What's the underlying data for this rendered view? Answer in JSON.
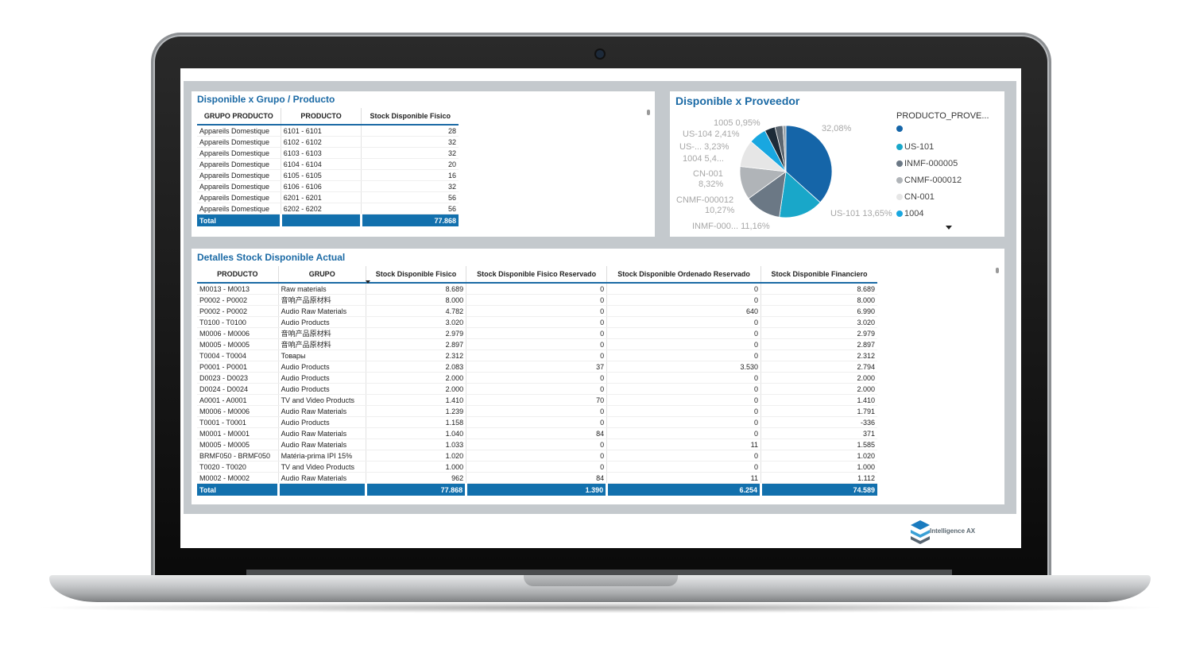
{
  "table1": {
    "title": "Disponible x Grupo / Producto",
    "headers": [
      "GRUPO PRODUCTO",
      "PRODUCTO",
      "Stock Disponible Fisico"
    ],
    "rows": [
      [
        "Appareils Domestique",
        "6101 - 6101",
        "28"
      ],
      [
        "Appareils Domestique",
        "6102 - 6102",
        "32"
      ],
      [
        "Appareils Domestique",
        "6103 - 6103",
        "32"
      ],
      [
        "Appareils Domestique",
        "6104 - 6104",
        "20"
      ],
      [
        "Appareils Domestique",
        "6105 - 6105",
        "16"
      ],
      [
        "Appareils Domestique",
        "6106 - 6106",
        "32"
      ],
      [
        "Appareils Domestique",
        "6201 - 6201",
        "56"
      ],
      [
        "Appareils Domestique",
        "6202 - 6202",
        "56"
      ]
    ],
    "total": [
      "Total",
      "",
      "77.868"
    ]
  },
  "pie": {
    "title": "Disponible x Proveedor",
    "legend_title": "PRODUCTO_PROVE...",
    "legend": [
      {
        "label": "",
        "color": "#1565a8"
      },
      {
        "label": "US-101",
        "color": "#19a7c9"
      },
      {
        "label": "INMF-000005",
        "color": "#6b7885"
      },
      {
        "label": "CNMF-000012",
        "color": "#b0b4b8"
      },
      {
        "label": "CN-001",
        "color": "#e6e6e6"
      },
      {
        "label": "1004",
        "color": "#19a7e0"
      }
    ],
    "labels": {
      "l1005": "1005 0,95%",
      "lus104": "US-104 2,41%",
      "lus": "US-... 3,23%",
      "l1004": "1004 5,4...",
      "lcn001a": "CN-001",
      "lcn001b": "8,32%",
      "lcnmfa": "CNMF-000012",
      "lcnmfb": "10,27%",
      "linmf": "INMF-000... 11,16%",
      "lus101": "US-101 13,65%",
      "lmain": "32,08%"
    }
  },
  "chart_data": {
    "type": "pie",
    "title": "Disponible x Proveedor",
    "slices": [
      {
        "label": "",
        "value": 32.08,
        "color": "#1565a8"
      },
      {
        "label": "US-101",
        "value": 13.65,
        "color": "#19a7c9"
      },
      {
        "label": "INMF-000...",
        "value": 11.16,
        "color": "#6b7885"
      },
      {
        "label": "CNMF-000012",
        "value": 10.27,
        "color": "#b0b4b8"
      },
      {
        "label": "CN-001",
        "value": 8.32,
        "color": "#e6e6e6"
      },
      {
        "label": "1004",
        "value": 5.4,
        "color": "#19a7e0"
      },
      {
        "label": "US-...",
        "value": 3.23,
        "color": "#1d2b38"
      },
      {
        "label": "US-104",
        "value": 2.41,
        "color": "#5c6670"
      },
      {
        "label": "1005",
        "value": 0.95,
        "color": "#9aa2a8"
      }
    ]
  },
  "table2": {
    "title": "Detalles Stock Disponible Actual",
    "headers": [
      "PRODUCTO",
      "GRUPO",
      "Stock Disponible Fisico",
      "Stock Disponible Fisico Reservado",
      "Stock Disponible Ordenado Reservado",
      "Stock Disponible Financiero"
    ],
    "rows": [
      [
        "M0013 - M0013",
        "Raw materials",
        "8.689",
        "0",
        "0",
        "8.689"
      ],
      [
        "P0002 - P0002",
        "音响产品原材料",
        "8.000",
        "0",
        "0",
        "8.000"
      ],
      [
        "P0002 - P0002",
        "Audio Raw Materials",
        "4.782",
        "0",
        "640",
        "6.990"
      ],
      [
        "T0100 - T0100",
        "Audio Products",
        "3.020",
        "0",
        "0",
        "3.020"
      ],
      [
        "M0006 - M0006",
        "音响产品原材料",
        "2.979",
        "0",
        "0",
        "2.979"
      ],
      [
        "M0005 - M0005",
        "音响产品原材料",
        "2.897",
        "0",
        "0",
        "2.897"
      ],
      [
        "T0004 - T0004",
        "Товары",
        "2.312",
        "0",
        "0",
        "2.312"
      ],
      [
        "P0001 - P0001",
        "Audio Products",
        "2.083",
        "37",
        "3.530",
        "2.794"
      ],
      [
        "D0023 - D0023",
        "Audio Products",
        "2.000",
        "0",
        "0",
        "2.000"
      ],
      [
        "D0024 - D0024",
        "Audio Products",
        "2.000",
        "0",
        "0",
        "2.000"
      ],
      [
        "A0001 - A0001",
        "TV and Video Products",
        "1.410",
        "70",
        "0",
        "1.410"
      ],
      [
        "M0006 - M0006",
        "Audio Raw Materials",
        "1.239",
        "0",
        "0",
        "1.791"
      ],
      [
        "T0001 - T0001",
        "Audio Products",
        "1.158",
        "0",
        "0",
        "-336"
      ],
      [
        "M0001 - M0001",
        "Audio Raw Materials",
        "1.040",
        "84",
        "0",
        "371"
      ],
      [
        "M0005 - M0005",
        "Audio Raw Materials",
        "1.033",
        "0",
        "11",
        "1.585"
      ],
      [
        "BRMF050 - BRMF050",
        "Matéria-prima IPI 15%",
        "1.020",
        "0",
        "0",
        "1.020"
      ],
      [
        "T0020 - T0020",
        "TV and Video Products",
        "1.000",
        "0",
        "0",
        "1.000"
      ],
      [
        "M0002 - M0002",
        "Audio Raw Materials",
        "962",
        "84",
        "11",
        "1.112"
      ]
    ],
    "total": [
      "Total",
      "",
      "77.868",
      "1.390",
      "6.254",
      "74.589"
    ]
  },
  "logo": {
    "text": "Intelligence AX"
  }
}
